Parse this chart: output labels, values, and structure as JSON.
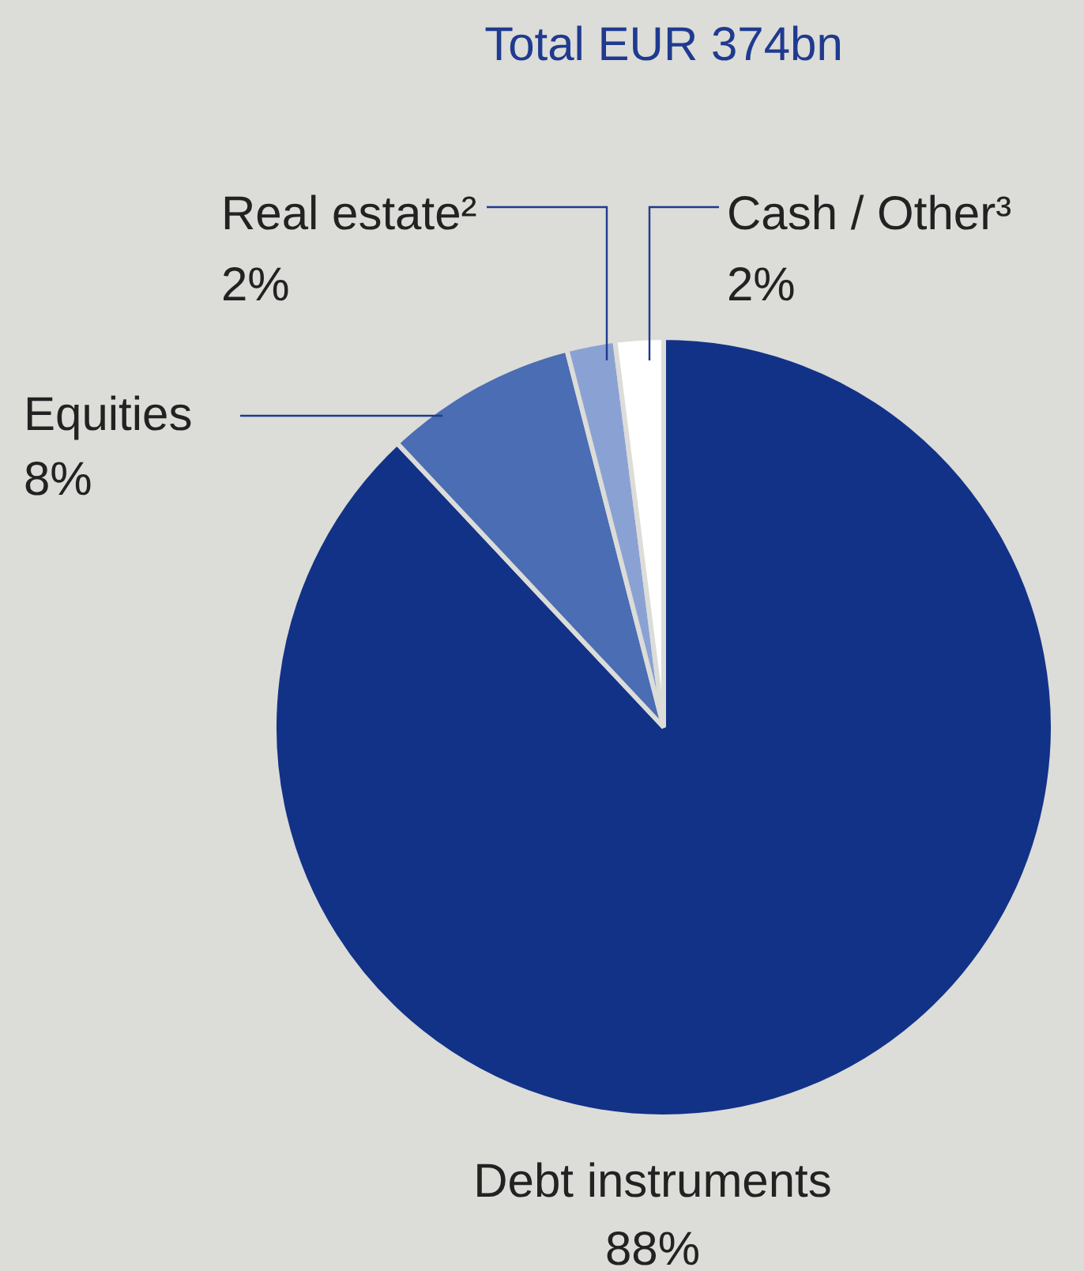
{
  "chart_data": {
    "type": "pie",
    "title": "Total EUR 374bn",
    "categories": [
      "Debt instruments",
      "Equities",
      "Real estate²",
      "Cash / Other³"
    ],
    "values": [
      88,
      8,
      2,
      2
    ],
    "colors": [
      "#123287",
      "#4a6db3",
      "#8aa2d3",
      "#ffffff"
    ],
    "value_labels": [
      "88%",
      "8%",
      "2%",
      "2%"
    ],
    "legend": false
  }
}
